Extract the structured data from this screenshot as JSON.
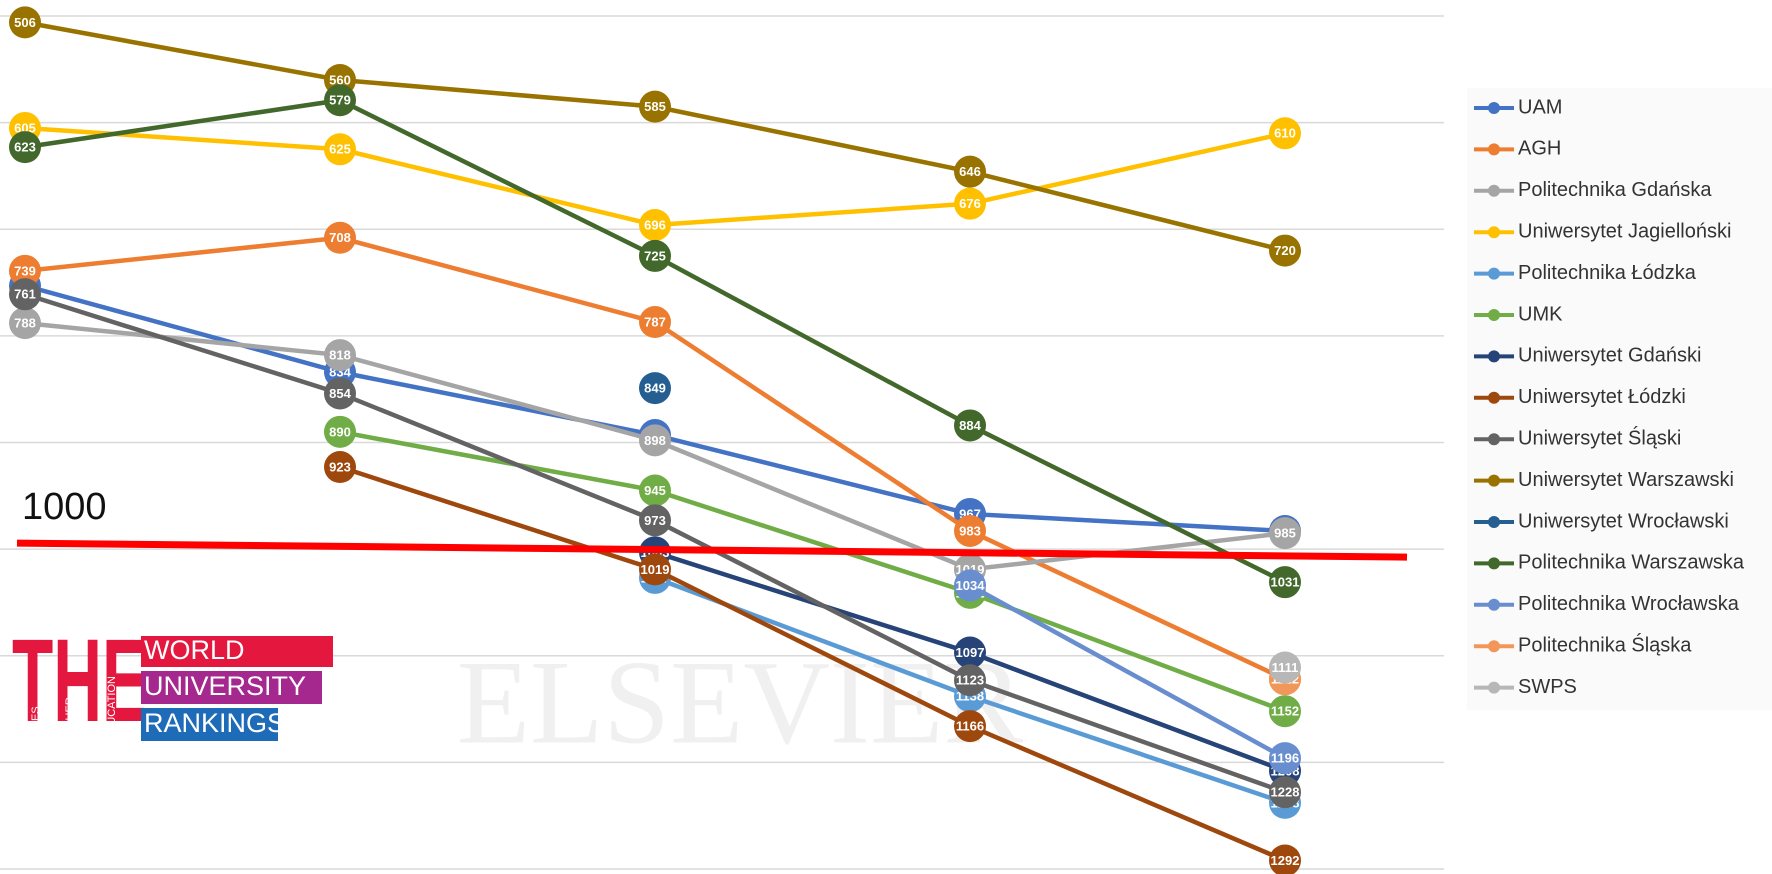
{
  "chart_data": {
    "type": "line",
    "categories": [
      null,
      null,
      null,
      null,
      null
    ],
    "ylim": [
      500,
      1300
    ],
    "y_inverted": true,
    "yticks": [
      500,
      600,
      700,
      800,
      900,
      1000,
      1100,
      1200,
      1300
    ],
    "grid": true,
    "legend": "right",
    "reference_line": {
      "value": 1000,
      "color": "#ff0000"
    },
    "watermark": "ELSEVIER",
    "logo": {
      "big": "THE",
      "side": [
        "TIMES",
        "HIGHER",
        "EDUCATION"
      ],
      "lines": [
        "WORLD",
        "UNIVERSITY",
        "RANKINGS"
      ]
    },
    "series": [
      {
        "name": "UAM",
        "color": "#4472c4",
        "values": [
          753,
          834,
          893,
          967,
          983
        ]
      },
      {
        "name": "AGH",
        "color": "#ed7d31",
        "values": [
          739,
          708,
          787,
          983,
          1122
        ]
      },
      {
        "name": "Politechnika Gdańska",
        "color": "#a5a5a5",
        "values": [
          788,
          818,
          898,
          1019,
          985
        ]
      },
      {
        "name": "Uniwersytet Jagielloński",
        "color": "#ffc000",
        "values": [
          605,
          625,
          696,
          676,
          610
        ]
      },
      {
        "name": "Politechnika Łódzka",
        "color": "#5b9bd5",
        "values": [
          null,
          null,
          1027,
          1138,
          1238
        ]
      },
      {
        "name": "UMK",
        "color": "#70ad47",
        "values": [
          null,
          890,
          945,
          1041,
          1152
        ]
      },
      {
        "name": "Uniwersytet Gdański",
        "color": "#264478",
        "values": [
          null,
          null,
          1003,
          1097,
          1208
        ]
      },
      {
        "name": "Uniwersytet Łódzki",
        "color": "#9e480e",
        "values": [
          null,
          923,
          1019,
          1166,
          1292
        ]
      },
      {
        "name": "Uniwersytet Śląski",
        "color": "#636363",
        "values": [
          761,
          854,
          973,
          1123,
          1228
        ]
      },
      {
        "name": "Uniwersytet Warszawski",
        "color": "#997300",
        "values": [
          506,
          560,
          585,
          646,
          720
        ]
      },
      {
        "name": "Uniwersytet Wrocławski",
        "color": "#255e91",
        "values": [
          null,
          null,
          849,
          null,
          null
        ]
      },
      {
        "name": "Politechnika Warszawska",
        "color": "#43682b",
        "values": [
          623,
          579,
          725,
          884,
          1031
        ]
      },
      {
        "name": "Politechnika Wrocławska",
        "color": "#698ed0",
        "values": [
          null,
          null,
          null,
          1034,
          1196
        ]
      },
      {
        "name": "Politechnika  Śląska",
        "color": "#f1975a",
        "values": [
          null,
          null,
          null,
          null,
          1122
        ]
      },
      {
        "name": "SWPS",
        "color": "#b7b7b7",
        "values": [
          null,
          null,
          null,
          null,
          1111
        ]
      }
    ]
  }
}
